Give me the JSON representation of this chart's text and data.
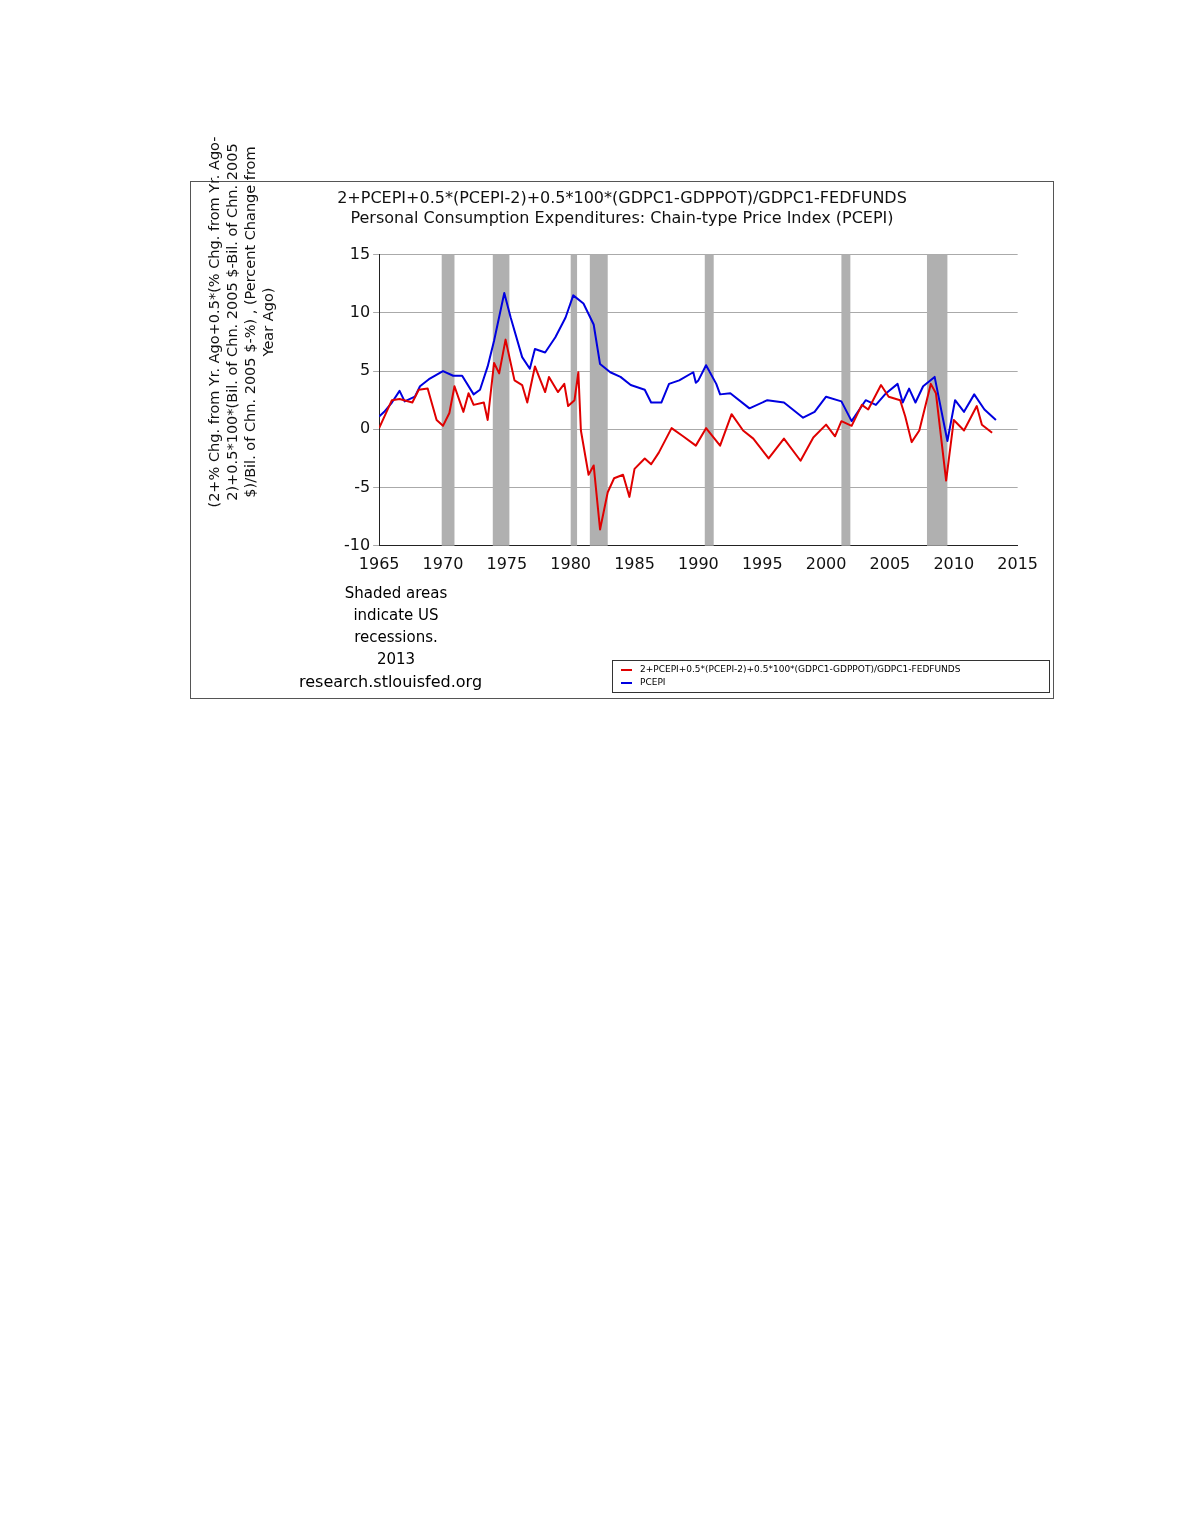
{
  "chart_data": {
    "type": "line",
    "title": "2+PCEPI+0.5*(PCEPI-2)+0.5*100*(GDPC1-GDPPOT)/GDPC1-FEDFUNDS",
    "subtitle": "Personal Consumption Expenditures: Chain-type Price Index (PCEPI)",
    "ylabel": "(2+% Chg. from Yr. Ago+0.5*(% Chg. from Yr. Ago-2)+0.5*100*(Bil. of Chn. 2005 $-Bil. of Chn. 2005 $)/Bil. of Chn. 2005 $-%) , (Percent Change from Year Ago)",
    "annotations": [
      "Shaded areas indicate US recessions. 2013",
      "research.stlouisfed.org"
    ],
    "xlim": [
      1965,
      2015
    ],
    "xticks": [
      1965,
      1970,
      1975,
      1980,
      1985,
      1990,
      1995,
      2000,
      2005,
      2010,
      2015
    ],
    "ylim": [
      -10,
      15
    ],
    "yticks": [
      -10,
      -5,
      0,
      5,
      10,
      15
    ],
    "grid": "y",
    "legend": "bottom right",
    "marker": "none",
    "line_style": "solid",
    "bands": [
      {
        "axis": "x",
        "from": 1969.9,
        "to": 1970.9,
        "color": "#b0b0b0"
      },
      {
        "axis": "x",
        "from": 1973.9,
        "to": 1975.2,
        "color": "#b0b0b0"
      },
      {
        "axis": "x",
        "from": 1980.0,
        "to": 1980.5,
        "color": "#b0b0b0"
      },
      {
        "axis": "x",
        "from": 1981.5,
        "to": 1982.9,
        "color": "#b0b0b0"
      },
      {
        "axis": "x",
        "from": 1990.5,
        "to": 1991.2,
        "color": "#b0b0b0"
      },
      {
        "axis": "x",
        "from": 2001.2,
        "to": 2001.9,
        "color": "#b0b0b0"
      },
      {
        "axis": "x",
        "from": 2007.9,
        "to": 2009.5,
        "color": "#b0b0b0"
      }
    ],
    "series": [
      {
        "name": "2+PCEPI+0.5*(PCEPI-2)+0.5*100*(GDPC1-GDPPOT)/GDPC1-FEDFUNDS",
        "color": "#e00000",
        "x": [
          1965.0,
          1966.0,
          1966.6,
          1967.6,
          1968.1,
          1968.8,
          1969.5,
          1970.0,
          1970.5,
          1970.9,
          1971.6,
          1972.0,
          1972.4,
          1973.2,
          1973.5,
          1974.0,
          1974.4,
          1974.9,
          1975.6,
          1976.2,
          1976.6,
          1977.2,
          1978.0,
          1978.3,
          1979.0,
          1979.5,
          1979.8,
          1980.3,
          1980.6,
          1980.8,
          1981.4,
          1981.8,
          1982.3,
          1982.9,
          1983.4,
          1984.1,
          1984.6,
          1985.0,
          1985.8,
          1986.3,
          1986.9,
          1987.9,
          1988.8,
          1989.8,
          1990.6,
          1991.7,
          1992.6,
          1993.5,
          1994.3,
          1995.5,
          1996.7,
          1998.0,
          1999.0,
          2000.0,
          2000.7,
          2001.2,
          2002.0,
          2002.8,
          2003.3,
          2004.3,
          2004.9,
          2005.8,
          2006.2,
          2006.7,
          2007.3,
          2008.2,
          2008.6,
          2009.4,
          2010.0,
          2010.8,
          2011.8,
          2012.2,
          2013.0
        ],
        "values": [
          0.1,
          2.5,
          2.6,
          2.3,
          3.4,
          3.5,
          0.8,
          0.3,
          1.4,
          3.7,
          1.5,
          3.1,
          2.1,
          2.3,
          0.8,
          5.7,
          4.8,
          7.7,
          4.2,
          3.8,
          2.3,
          5.4,
          3.2,
          4.5,
          3.2,
          3.9,
          2.0,
          2.5,
          4.9,
          -0.1,
          -3.9,
          -3.1,
          -8.6,
          -5.4,
          -4.2,
          -3.9,
          -5.8,
          -3.4,
          -2.5,
          -3.0,
          -2.0,
          0.1,
          -0.6,
          -1.4,
          0.1,
          -1.4,
          1.3,
          -0.1,
          -0.8,
          -2.5,
          -0.8,
          -2.7,
          -0.7,
          0.4,
          -0.6,
          0.7,
          0.3,
          2.1,
          1.7,
          3.8,
          2.8,
          2.5,
          1.1,
          -1.1,
          -0.1,
          3.9,
          3.1,
          -4.4,
          0.8,
          -0.1,
          2.0,
          0.4,
          -0.3
        ]
      },
      {
        "name": "PCEPI",
        "color": "#0000e0",
        "x": [
          1965.0,
          1965.4,
          1966.0,
          1966.6,
          1967.0,
          1967.8,
          1968.2,
          1968.9,
          1970.0,
          1970.8,
          1971.5,
          1972.4,
          1972.9,
          1973.5,
          1974.0,
          1974.8,
          1975.3,
          1976.2,
          1976.8,
          1977.2,
          1978.0,
          1978.8,
          1979.6,
          1980.2,
          1981.0,
          1981.8,
          1982.3,
          1983.1,
          1983.9,
          1984.7,
          1985.8,
          1986.3,
          1987.1,
          1987.7,
          1988.5,
          1989.6,
          1989.8,
          1990.0,
          1990.6,
          1991.4,
          1991.7,
          1992.5,
          1994.0,
          1995.4,
          1996.7,
          1998.2,
          1999.1,
          2000.0,
          2001.2,
          2002.0,
          2003.1,
          2003.9,
          2004.7,
          2005.6,
          2006.0,
          2006.5,
          2007.0,
          2007.6,
          2008.5,
          2009.5,
          2010.1,
          2010.8,
          2011.6,
          2012.4,
          2013.3
        ],
        "values": [
          1.1,
          1.5,
          2.3,
          3.3,
          2.4,
          2.8,
          3.7,
          4.3,
          5.0,
          4.6,
          4.6,
          3.0,
          3.4,
          5.4,
          7.6,
          11.7,
          9.6,
          6.2,
          5.2,
          6.9,
          6.6,
          7.9,
          9.6,
          11.5,
          10.8,
          9.0,
          5.6,
          4.9,
          4.5,
          3.8,
          3.4,
          2.3,
          2.3,
          3.9,
          4.2,
          4.9,
          4.0,
          4.2,
          5.5,
          3.9,
          3.0,
          3.1,
          1.8,
          2.5,
          2.3,
          1.0,
          1.5,
          2.8,
          2.4,
          0.7,
          2.5,
          2.1,
          3.1,
          3.9,
          2.3,
          3.5,
          2.3,
          3.7,
          4.5,
          -1.0,
          2.5,
          1.5,
          3.0,
          1.7,
          0.8
        ]
      }
    ]
  }
}
